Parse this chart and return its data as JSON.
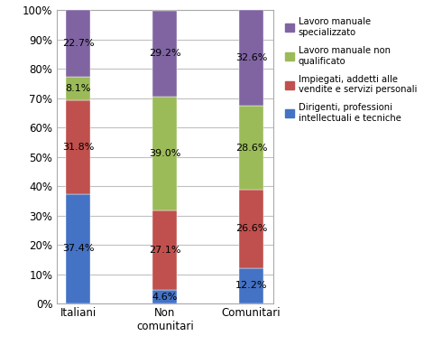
{
  "categories": [
    "Italiani",
    "Non\ncomunitari",
    "Comunitari"
  ],
  "series": {
    "Dirigenti, professioni\nintellectuali e tecniche": [
      37.4,
      4.6,
      12.2
    ],
    "Impiegati, addetti alle\nvendite e servizi personali": [
      31.8,
      27.1,
      26.6
    ],
    "Lavoro manuale non\nqualificato": [
      8.1,
      39.0,
      28.6
    ],
    "Lavoro manuale\nspecializzato": [
      22.7,
      29.2,
      32.6
    ]
  },
  "colors": [
    "#4472C4",
    "#C0504D",
    "#9BBB59",
    "#8064A2"
  ],
  "legend_labels": [
    "Lavoro manuale\nspecializzato",
    "Lavoro manuale non\nqualificato",
    "Impiegati, addetti alle\nvendite e servizi personali",
    "Dirigenti, professioni\nintellectuali e tecniche"
  ],
  "legend_colors": [
    "#8064A2",
    "#9BBB59",
    "#C0504D",
    "#4472C4"
  ],
  "ylim": [
    0,
    100
  ],
  "yticks": [
    0,
    10,
    20,
    30,
    40,
    50,
    60,
    70,
    80,
    90,
    100
  ],
  "ytick_labels": [
    "0%",
    "10%",
    "20%",
    "30%",
    "40%",
    "50%",
    "60%",
    "70%",
    "80%",
    "90%",
    "100%"
  ],
  "bar_width": 0.28,
  "background_color": "#FFFFFF",
  "plot_bg_color": "#FFFFFF",
  "grid_color": "#C0C0C0",
  "border_color": "#AAAAAA",
  "font_size": 8.5,
  "label_font_size": 8.0
}
